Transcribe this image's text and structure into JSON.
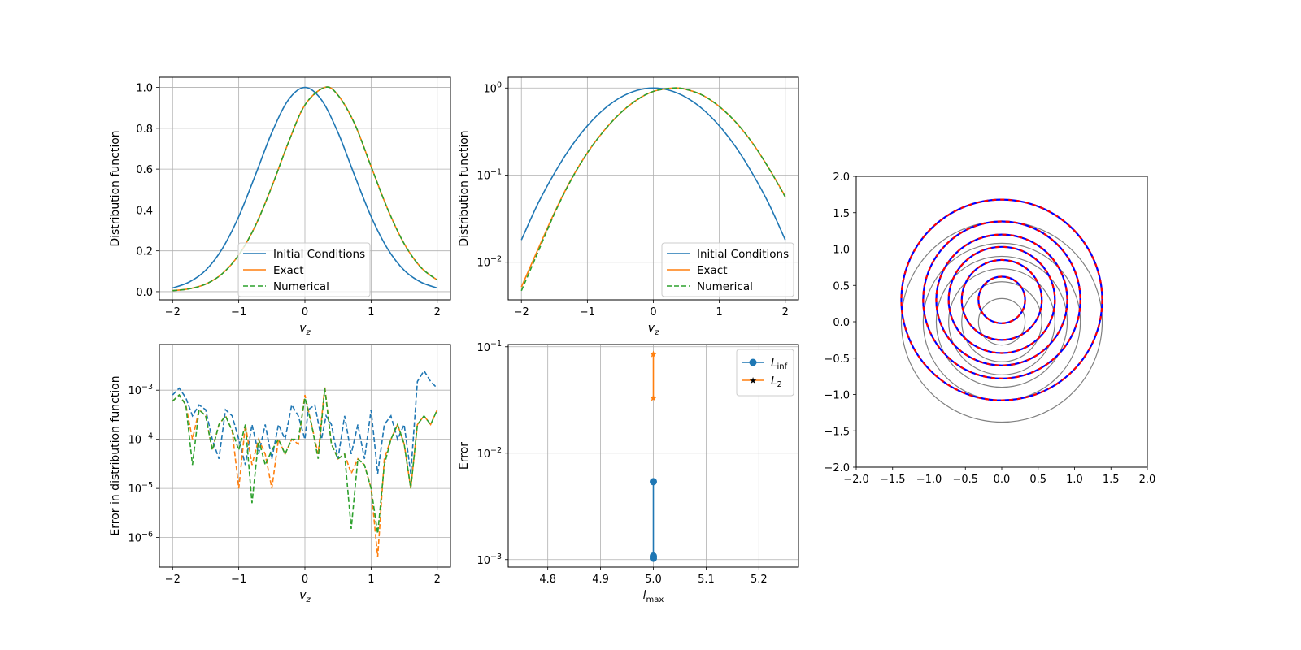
{
  "chart_data": [
    {
      "id": "p1",
      "type": "line",
      "xlabel": "v_z",
      "ylabel": "Distribution function",
      "xlim": [
        -2.2,
        2.2
      ],
      "ylim": [
        -0.04,
        1.05
      ],
      "yscale": "linear",
      "grid": true,
      "legend": "lower-center",
      "x_ticks": [
        -2,
        -1,
        0,
        1,
        2
      ],
      "y_ticks": [
        0.0,
        0.2,
        0.4,
        0.6,
        0.8,
        1.0
      ],
      "x_tick_labels": [
        "−2",
        "−1",
        "0",
        "1",
        "2"
      ],
      "y_tick_labels": [
        "0.0",
        "0.2",
        "0.4",
        "0.6",
        "0.8",
        "1.0"
      ],
      "series": [
        {
          "name": "Initial Conditions",
          "style": "solid",
          "color": "#1f77b4",
          "x": [
            -2.0,
            -1.75,
            -1.5,
            -1.25,
            -1.0,
            -0.75,
            -0.5,
            -0.25,
            0.0,
            0.25,
            0.5,
            0.75,
            1.0,
            1.25,
            1.5,
            1.75,
            2.0
          ],
          "y": [
            0.018,
            0.047,
            0.105,
            0.21,
            0.368,
            0.57,
            0.779,
            0.939,
            1.0,
            0.939,
            0.779,
            0.57,
            0.368,
            0.21,
            0.105,
            0.047,
            0.018
          ]
        },
        {
          "name": "Exact",
          "style": "solid",
          "color": "#ff7f0e",
          "x": [
            -2.0,
            -1.75,
            -1.5,
            -1.25,
            -1.0,
            -0.75,
            -0.5,
            -0.25,
            0.0,
            0.3,
            0.5,
            0.75,
            1.0,
            1.25,
            1.5,
            1.75,
            2.0
          ],
          "y": [
            0.005,
            0.014,
            0.037,
            0.088,
            0.18,
            0.322,
            0.515,
            0.73,
            0.914,
            1.0,
            0.962,
            0.823,
            0.613,
            0.405,
            0.235,
            0.12,
            0.057
          ]
        },
        {
          "name": "Numerical",
          "style": "dashed",
          "color": "#2ca02c",
          "x": [
            -2.0,
            -1.75,
            -1.5,
            -1.25,
            -1.0,
            -0.75,
            -0.5,
            -0.25,
            0.0,
            0.3,
            0.5,
            0.75,
            1.0,
            1.25,
            1.5,
            1.75,
            2.0
          ],
          "y": [
            0.005,
            0.014,
            0.037,
            0.088,
            0.18,
            0.322,
            0.515,
            0.73,
            0.914,
            1.0,
            0.962,
            0.823,
            0.613,
            0.405,
            0.235,
            0.12,
            0.057
          ]
        }
      ]
    },
    {
      "id": "p2",
      "type": "line",
      "xlabel": "v_z",
      "ylabel": "Distribution function",
      "xlim": [
        -2.2,
        2.2
      ],
      "ylim": [
        0.0037,
        1.33
      ],
      "yscale": "log",
      "grid": true,
      "legend": "lower-right",
      "x_ticks": [
        -2,
        -1,
        0,
        1,
        2
      ],
      "y_ticks": [
        0.01,
        0.1,
        1
      ],
      "x_tick_labels": [
        "−2",
        "−1",
        "0",
        "1",
        "2"
      ],
      "y_tick_labels": [
        "10",
        "10",
        "10"
      ],
      "y_tick_exps": [
        "−2",
        "−1",
        "0"
      ],
      "series": [
        {
          "name": "Initial Conditions",
          "style": "solid",
          "color": "#1f77b4",
          "x": [
            -2.0,
            -1.75,
            -1.5,
            -1.25,
            -1.0,
            -0.75,
            -0.5,
            -0.25,
            0.0,
            0.25,
            0.5,
            0.75,
            1.0,
            1.25,
            1.5,
            1.75,
            2.0
          ],
          "y": [
            0.018,
            0.047,
            0.105,
            0.21,
            0.368,
            0.57,
            0.779,
            0.939,
            1.0,
            0.939,
            0.779,
            0.57,
            0.368,
            0.21,
            0.105,
            0.047,
            0.018
          ]
        },
        {
          "name": "Exact",
          "style": "solid",
          "color": "#ff7f0e",
          "x": [
            -2.0,
            -1.75,
            -1.5,
            -1.25,
            -1.0,
            -0.75,
            -0.5,
            -0.25,
            0.0,
            0.3,
            0.5,
            0.75,
            1.0,
            1.25,
            1.5,
            1.75,
            2.0
          ],
          "y": [
            0.0052,
            0.014,
            0.037,
            0.088,
            0.18,
            0.322,
            0.515,
            0.73,
            0.914,
            1.0,
            0.962,
            0.823,
            0.613,
            0.405,
            0.235,
            0.12,
            0.057
          ]
        },
        {
          "name": "Numerical",
          "style": "dashed",
          "color": "#2ca02c",
          "x": [
            -2.0,
            -1.75,
            -1.5,
            -1.25,
            -1.0,
            -0.75,
            -0.5,
            -0.25,
            0.0,
            0.3,
            0.5,
            0.75,
            1.0,
            1.25,
            1.5,
            1.75,
            2.0
          ],
          "y": [
            0.0047,
            0.013,
            0.036,
            0.087,
            0.18,
            0.322,
            0.515,
            0.73,
            0.914,
            1.0,
            0.962,
            0.823,
            0.613,
            0.405,
            0.235,
            0.12,
            0.056
          ]
        }
      ]
    },
    {
      "id": "p3",
      "type": "line",
      "xlabel": "v_z",
      "ylabel": "Error in distribution function",
      "xlim": [
        -2.2,
        2.2
      ],
      "ylim": [
        2.5e-07,
        0.0085
      ],
      "yscale": "log",
      "grid": true,
      "legend": "none",
      "x_ticks": [
        -2,
        -1,
        0,
        1,
        2
      ],
      "y_ticks": [
        1e-06,
        1e-05,
        0.0001,
        0.001
      ],
      "x_tick_labels": [
        "−2",
        "−1",
        "0",
        "1",
        "2"
      ],
      "y_tick_labels": [
        "10",
        "10",
        "10",
        "10"
      ],
      "y_tick_exps": [
        "−6",
        "−5",
        "−4",
        "−3"
      ],
      "series": [
        {
          "name": "",
          "style": "dashed",
          "color": "#1f77b4",
          "x": [
            -2.0,
            -1.9,
            -1.8,
            -1.7,
            -1.6,
            -1.5,
            -1.4,
            -1.3,
            -1.2,
            -1.1,
            -1.0,
            -0.9,
            -0.8,
            -0.7,
            -0.6,
            -0.5,
            -0.4,
            -0.3,
            -0.2,
            -0.1,
            0.0,
            0.05,
            0.15,
            0.25,
            0.32,
            0.4,
            0.5,
            0.6,
            0.7,
            0.8,
            0.9,
            1.0,
            1.1,
            1.2,
            1.3,
            1.4,
            1.5,
            1.6,
            1.7,
            1.8,
            1.9,
            2.0
          ],
          "y": [
            0.0008,
            0.0011,
            0.0007,
            0.0003,
            0.0005,
            0.0004,
            0.0001,
            4e-05,
            0.0004,
            0.0003,
            0.0001,
            3e-05,
            0.0002,
            5e-05,
            0.0002,
            4e-05,
            0.0002,
            0.0001,
            0.0005,
            0.0003,
            0.0001,
            0.0004,
            0.0005,
            0.0001,
            0.0003,
            0.0002,
            4e-05,
            0.0003,
            5e-05,
            0.0002,
            4e-05,
            0.0004,
            2e-05,
            0.0002,
            0.0003,
            0.0001,
            0.0002,
            2e-05,
            0.0015,
            0.0025,
            0.0015,
            0.0011
          ]
        },
        {
          "name": "",
          "style": "dashed",
          "color": "#ff7f0e",
          "x": [
            -2.0,
            -1.9,
            -1.8,
            -1.7,
            -1.6,
            -1.5,
            -1.4,
            -1.3,
            -1.2,
            -1.1,
            -1.0,
            -0.9,
            -0.8,
            -0.7,
            -0.6,
            -0.5,
            -0.4,
            -0.3,
            -0.2,
            -0.1,
            0.0,
            0.1,
            0.2,
            0.3,
            0.4,
            0.5,
            0.6,
            0.7,
            0.8,
            0.9,
            1.0,
            1.1,
            1.2,
            1.3,
            1.4,
            1.5,
            1.6,
            1.7,
            1.8,
            1.9,
            2.0
          ],
          "y": [
            0.0006,
            0.0008,
            0.0005,
            0.0001,
            0.0004,
            0.0003,
            6e-05,
            0.0002,
            0.0003,
            0.00015,
            1e-05,
            0.0002,
            3e-05,
            0.0001,
            5e-05,
            1e-05,
            0.0001,
            5e-05,
            0.0001,
            8e-05,
            0.0008,
            0.0002,
            5e-05,
            0.0012,
            8e-05,
            4e-05,
            5e-05,
            2e-05,
            4e-05,
            3e-05,
            1e-05,
            4e-07,
            4e-05,
            0.0001,
            0.0002,
            8e-05,
            1e-05,
            0.0002,
            0.0003,
            0.0002,
            0.0004
          ]
        },
        {
          "name": "",
          "style": "dashed",
          "color": "#2ca02c",
          "x": [
            -2.0,
            -1.9,
            -1.8,
            -1.7,
            -1.6,
            -1.5,
            -1.4,
            -1.3,
            -1.2,
            -1.1,
            -1.0,
            -0.9,
            -0.8,
            -0.7,
            -0.6,
            -0.5,
            -0.4,
            -0.3,
            -0.2,
            -0.1,
            0.0,
            0.1,
            0.2,
            0.3,
            0.4,
            0.5,
            0.6,
            0.7,
            0.8,
            0.9,
            1.0,
            1.1,
            1.2,
            1.3,
            1.4,
            1.5,
            1.6,
            1.7,
            1.8,
            1.9,
            2.0
          ],
          "y": [
            0.0006,
            0.0008,
            0.0005,
            3e-05,
            0.0004,
            0.0003,
            6e-05,
            0.0002,
            0.0003,
            0.00015,
            6e-05,
            0.0002,
            5e-06,
            0.0001,
            3e-05,
            6e-05,
            0.0001,
            5e-05,
            0.0001,
            0.0001,
            0.0007,
            0.0002,
            4e-05,
            0.0011,
            8e-05,
            4e-05,
            5e-05,
            1.5e-06,
            4e-05,
            3e-05,
            1e-05,
            1.2e-06,
            3e-05,
            0.0001,
            0.0002,
            8e-05,
            1e-05,
            0.0002,
            0.0003,
            0.0002,
            0.0004
          ]
        }
      ]
    },
    {
      "id": "p4",
      "type": "line",
      "xlabel": "l_max",
      "ylabel": "Error",
      "xlim": [
        4.725,
        5.275
      ],
      "ylim": [
        0.00085,
        0.105
      ],
      "yscale": "log",
      "grid": true,
      "legend": "upper-right",
      "x_ticks": [
        4.8,
        4.9,
        5.0,
        5.1,
        5.2
      ],
      "y_ticks": [
        0.001,
        0.01,
        0.1
      ],
      "x_tick_labels": [
        "4.8",
        "4.9",
        "5.0",
        "5.1",
        "5.2"
      ],
      "y_tick_labels": [
        "10",
        "10",
        "10"
      ],
      "y_tick_exps": [
        "−3",
        "−2",
        "−1"
      ],
      "series": [
        {
          "name": "L",
          "name_sub": "inf",
          "marker": "circle",
          "color": "#1f77b4",
          "x": [
            5.0,
            5.0,
            5.0
          ],
          "y": [
            0.0054,
            0.00108,
            0.00103
          ]
        },
        {
          "name": "L",
          "name_sub": "2",
          "marker": "star",
          "color": "#ff7f0e",
          "x": [
            5.0,
            5.0
          ],
          "y": [
            0.085,
            0.033
          ]
        }
      ]
    },
    {
      "id": "p5",
      "type": "contour",
      "xlim": [
        -2.0,
        2.0
      ],
      "ylim": [
        -2.0,
        2.0
      ],
      "grid": false,
      "x_ticks": [
        -2.0,
        -1.5,
        -1.0,
        -0.5,
        0.0,
        0.5,
        1.0,
        1.5,
        2.0
      ],
      "y_ticks": [
        -2.0,
        -1.5,
        -1.0,
        -0.5,
        0.0,
        0.5,
        1.0,
        1.5,
        2.0
      ],
      "x_tick_labels": [
        "−2.0",
        "−1.5",
        "−1.0",
        "−0.5",
        "0.0",
        "0.5",
        "1.0",
        "1.5",
        "2.0"
      ],
      "y_tick_labels": [
        "−2.0",
        "−1.5",
        "−1.0",
        "−0.5",
        "0.0",
        "0.5",
        "1.0",
        "1.5",
        "2.0"
      ],
      "colors": {
        "initial": "#808080",
        "exact": "#0000ff",
        "numerical": "#ff0000"
      },
      "initial_contours": {
        "center": [
          0.0,
          0.0
        ],
        "radii": [
          0.32,
          0.55,
          0.73,
          0.9,
          1.08,
          1.38
        ]
      },
      "exact_contours": {
        "center": [
          0.0,
          0.3
        ],
        "radii": [
          0.32,
          0.55,
          0.73,
          0.9,
          1.08,
          1.38
        ]
      }
    }
  ]
}
